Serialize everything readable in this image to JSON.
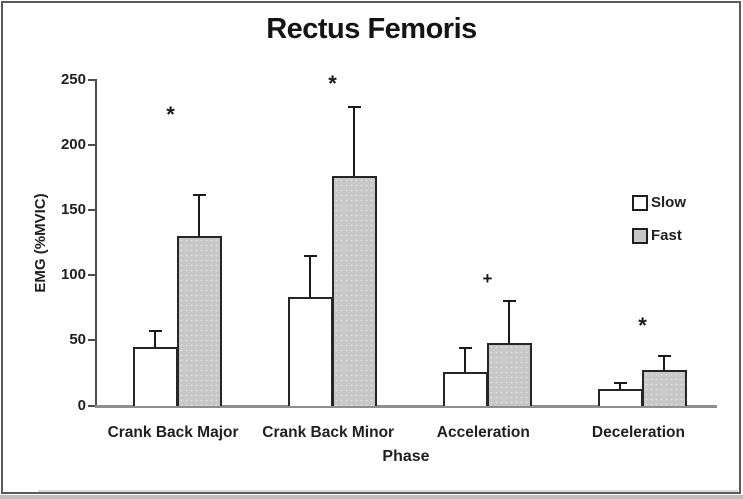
{
  "figure": {
    "title": "Rectus Femoris",
    "x_axis_title": "Phase",
    "y_axis_title": "EMG (%MVIC)"
  },
  "legend": {
    "position": "right",
    "items": [
      {
        "label": "Slow",
        "swatch_fill": "#ffffff"
      },
      {
        "label": "Fast",
        "swatch_fill": "#c7c7c7"
      }
    ]
  },
  "colors": {
    "slow_bar_fill": "#ffffff",
    "fast_bar_fill": "#c7c7c7",
    "bar_outline": "#262626",
    "y_axis_line": "#4d4d4d",
    "x_axis_line": "#8e8e8e",
    "text": "#1f1f1f"
  },
  "chart_data": {
    "type": "bar",
    "title": "Rectus Femoris",
    "xlabel": "Phase",
    "ylabel": "EMG (%MVIC)",
    "categories": [
      "Crank Back Major",
      "Crank Back Minor",
      "Acceleration",
      "Deceleration"
    ],
    "series": [
      {
        "name": "Slow",
        "values": [
          45,
          83,
          26,
          13
        ],
        "error_plus": [
          12,
          32,
          18,
          4
        ]
      },
      {
        "name": "Fast",
        "values": [
          130,
          176,
          48,
          27
        ],
        "error_plus": [
          32,
          53,
          32,
          11
        ]
      }
    ],
    "significance_markers": [
      {
        "category": "Crank Back Major",
        "symbol": "*",
        "y": 226
      },
      {
        "category": "Crank Back Minor",
        "symbol": "*",
        "y": 250
      },
      {
        "category": "Acceleration",
        "symbol": "+",
        "y": 98
      },
      {
        "category": "Deceleration",
        "symbol": "*",
        "y": 64
      }
    ],
    "ylim": [
      0,
      250
    ],
    "yticks": [
      0,
      50,
      100,
      150,
      200,
      250
    ],
    "grid": false,
    "error_bars": "upper_only",
    "legend_position": "right"
  }
}
